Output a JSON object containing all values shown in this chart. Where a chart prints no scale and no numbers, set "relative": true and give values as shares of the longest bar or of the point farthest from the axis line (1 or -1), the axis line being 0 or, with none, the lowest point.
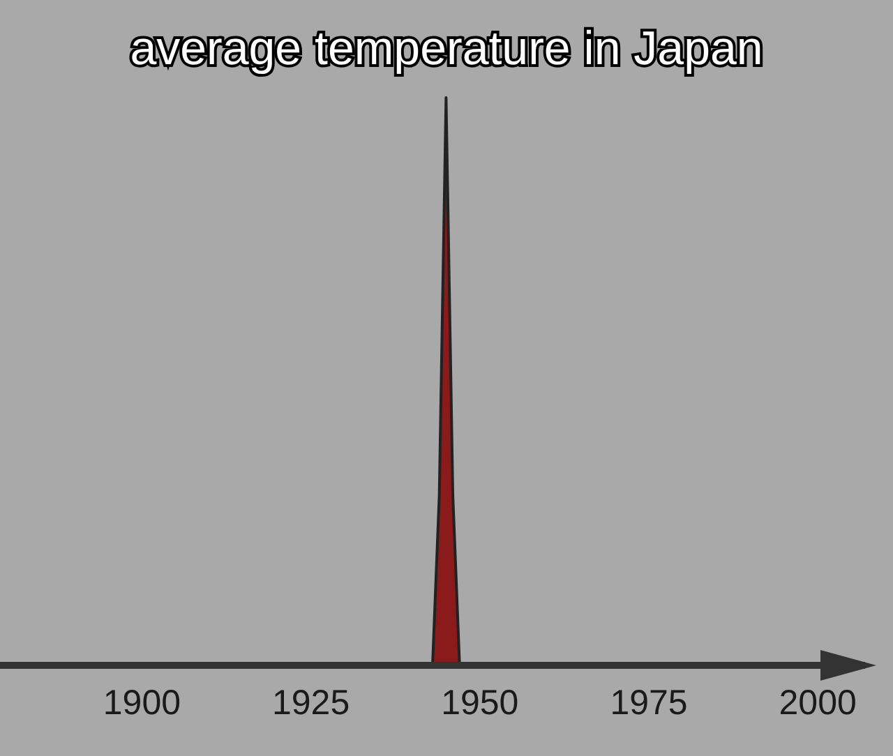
{
  "chart_data": {
    "type": "area",
    "title": "average temperature in Japan",
    "relative": true,
    "x": [
      1879,
      1943,
      1944,
      1945,
      1946,
      1947,
      1990
    ],
    "series": [
      {
        "color": "#8b1a1a",
        "values": [
          0,
          0,
          0.3,
          1,
          0.3,
          0,
          0
        ]
      }
    ],
    "xlim": [
      1879,
      2007
    ],
    "xticks": [
      1900,
      1925,
      1950,
      1975,
      2000
    ],
    "grid": false
  }
}
